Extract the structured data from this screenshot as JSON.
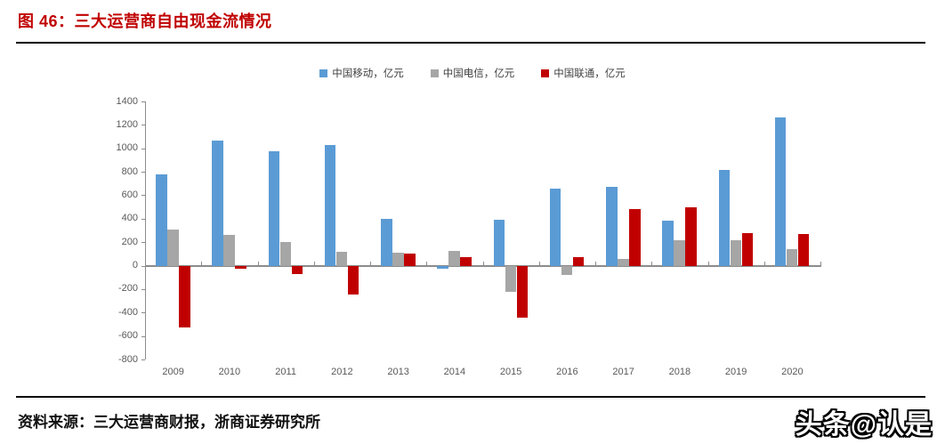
{
  "header": {
    "title": "图 46：三大运营商自由现金流情况"
  },
  "footer": {
    "source": "资料来源：三大运营商财报，浙商证券研究所",
    "watermark": "头条@认是"
  },
  "colors": {
    "title_red": "#c00000",
    "rule_black": "#000000",
    "axis_line": "#8c8c8c",
    "axis_label": "#595959",
    "legend_text": "#404040"
  },
  "chart_data": {
    "type": "bar",
    "title": "三大运营商自由现金流情况",
    "categories": [
      "2009",
      "2010",
      "2011",
      "2012",
      "2013",
      "2014",
      "2015",
      "2016",
      "2017",
      "2018",
      "2019",
      "2020"
    ],
    "series": [
      {
        "key": "china-mobile",
        "name": "中国移动，亿元",
        "color": "#5B9BD5",
        "values": [
          775,
          1065,
          975,
          1025,
          400,
          -30,
          390,
          660,
          675,
          385,
          815,
          1265
        ]
      },
      {
        "key": "china-telecom",
        "name": "中国电信，亿元",
        "color": "#A6A6A6",
        "values": [
          310,
          265,
          200,
          115,
          110,
          125,
          -220,
          -80,
          60,
          220,
          215,
          140
        ]
      },
      {
        "key": "china-unicom",
        "name": "中国联通，亿元",
        "color": "#C00000",
        "values": [
          -530,
          -30,
          -75,
          -250,
          100,
          70,
          -445,
          75,
          485,
          495,
          275,
          270
        ]
      }
    ],
    "y_ticks": [
      1400,
      1200,
      1000,
      800,
      600,
      400,
      200,
      0,
      -200,
      -400,
      -600,
      -800
    ],
    "ylim": [
      -800,
      1400
    ],
    "xlabel": "",
    "ylabel": "",
    "grid": false,
    "legend_position": "top-center"
  }
}
